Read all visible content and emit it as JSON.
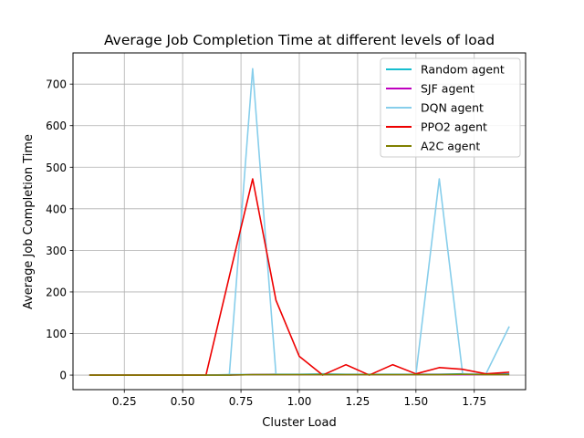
{
  "chart_data": {
    "type": "line",
    "title": "Average Job Completion Time at different levels of load",
    "xlabel": "Cluster Load",
    "ylabel": "Average Job Completion Time",
    "xlim": [
      0.03,
      1.97
    ],
    "ylim": [
      -35,
      775
    ],
    "xticks": [
      0.25,
      0.5,
      0.75,
      1.0,
      1.25,
      1.5,
      1.75
    ],
    "xtick_labels": [
      "0.25",
      "0.50",
      "0.75",
      "1.00",
      "1.25",
      "1.50",
      "1.75"
    ],
    "yticks": [
      0,
      100,
      200,
      300,
      400,
      500,
      600,
      700
    ],
    "ytick_labels": [
      "0",
      "100",
      "200",
      "300",
      "400",
      "500",
      "600",
      "700"
    ],
    "grid": true,
    "legend_position": "upper right",
    "x": [
      0.1,
      0.2,
      0.3,
      0.4,
      0.5,
      0.6,
      0.7,
      0.8,
      0.9,
      1.0,
      1.1,
      1.2,
      1.3,
      1.4,
      1.5,
      1.6,
      1.7,
      1.8,
      1.9
    ],
    "series": [
      {
        "name": "Random agent",
        "color": "#17becf",
        "values": [
          0,
          0,
          0,
          0,
          0,
          0,
          1,
          1,
          2,
          2,
          3,
          2,
          2,
          2,
          2,
          2,
          3,
          2,
          3
        ]
      },
      {
        "name": "SJF agent",
        "color": "#bf00bf",
        "values": [
          0,
          0,
          0,
          0,
          0,
          0,
          0,
          1,
          1,
          1,
          1,
          1,
          1,
          1,
          1,
          1,
          1,
          1,
          1
        ]
      },
      {
        "name": "DQN agent",
        "color": "#87ceeb",
        "values": [
          0,
          0,
          0,
          0,
          0,
          0,
          0,
          737,
          2,
          2,
          2,
          2,
          2,
          2,
          2,
          472,
          3,
          3,
          117
        ]
      },
      {
        "name": "PPO2 agent",
        "color": "#ee0000",
        "values": [
          0,
          0,
          0,
          0,
          0,
          0,
          237,
          472,
          180,
          45,
          0,
          25,
          0,
          25,
          3,
          18,
          14,
          3,
          7
        ]
      },
      {
        "name": "A2C agent",
        "color": "#808000",
        "values": [
          0,
          0,
          0,
          0,
          0,
          0,
          0,
          1,
          1,
          1,
          1,
          1,
          1,
          1,
          1,
          1,
          2,
          1,
          1
        ]
      }
    ]
  }
}
